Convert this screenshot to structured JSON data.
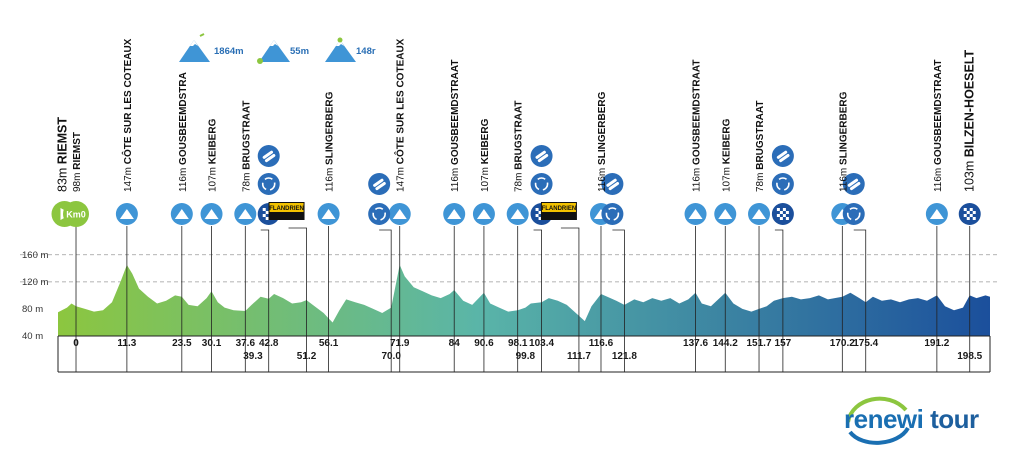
{
  "legend": [
    {
      "icon": "mountain-flag-icon",
      "label": "1864m"
    },
    {
      "icon": "mountain-start-icon",
      "label": "55m"
    },
    {
      "icon": "mountain-peak-icon",
      "label": "148r"
    }
  ],
  "logo": {
    "brand_a": "renewi",
    "brand_b": "tour"
  },
  "chart_data": {
    "type": "area",
    "title": "",
    "xlabel": "",
    "ylabel": "",
    "ylim": [
      40,
      170
    ],
    "yticks": [
      "160 m",
      "120 m",
      "80 m",
      "40 m"
    ],
    "ytick_values": [
      160,
      120,
      80,
      40
    ],
    "xlim": [
      -4,
      203
    ],
    "colors": {
      "start": "#8cc63f",
      "mid": "#5ab5a8",
      "end": "#1b4f9c",
      "icon": "#3f95d6"
    },
    "km_labels_top": [
      "0",
      "11.3",
      "23.5",
      "30.1",
      "37.6",
      "42.8",
      "56.1",
      "71.9",
      "84",
      "90.6",
      "98.1",
      "103.4",
      "116.6",
      "137.6",
      "144.2",
      "151.7",
      "157",
      "170.2",
      "175.4",
      "191.2"
    ],
    "km_labels_bottom": [
      "39.3",
      "51.2",
      "70.0",
      "99.8",
      "111.7",
      "121.8",
      "198.5"
    ],
    "climbs": [
      {
        "label": "83m",
        "name": "RIEMST",
        "km": -3,
        "icon": "start-icon",
        "bold": true
      },
      {
        "label": "98m",
        "name": "RIEMST",
        "km": 0,
        "icon": "km0-icon",
        "bold": false
      },
      {
        "label": "147m",
        "name": "CÔTE SUR LES COTEAUX",
        "km": 11.3,
        "icon": "mountain-icon",
        "bold": false
      },
      {
        "label": "116m",
        "name": "GOUSBEEMDSTRA",
        "km": 23.5,
        "icon": "mountain-icon",
        "bold": false
      },
      {
        "label": "107m",
        "name": "KEIBERG",
        "km": 30.1,
        "icon": "mountain-icon",
        "bold": false
      },
      {
        "label": "78m",
        "name": "BRUGSTRAAT",
        "km": 37.6,
        "icon": "mountain-icon",
        "bold": false
      },
      {
        "label": "116m",
        "name": "SLINGERBERG",
        "km": 56.1,
        "icon": "mountain-icon",
        "bold": false
      },
      {
        "label": "147m",
        "name": "CÔTE SUR LES COTEAUX",
        "km": 71.9,
        "icon": "mountain-icon",
        "bold": false
      },
      {
        "label": "116m",
        "name": "GOUSBEEMDSTRAAT",
        "km": 84,
        "icon": "mountain-icon",
        "bold": false
      },
      {
        "label": "107m",
        "name": "KEIBERG",
        "km": 90.6,
        "icon": "mountain-icon",
        "bold": false
      },
      {
        "label": "78m",
        "name": "BRUGSTRAAT",
        "km": 98.1,
        "icon": "mountain-icon",
        "bold": false
      },
      {
        "label": "116m",
        "name": "SLINGERBERG",
        "km": 116.6,
        "icon": "mountain-icon",
        "bold": false
      },
      {
        "label": "116m",
        "name": "GOUSBEEMDSTRAAT",
        "km": 137.6,
        "icon": "mountain-icon",
        "bold": false
      },
      {
        "label": "107m",
        "name": "KEIBERG",
        "km": 144.2,
        "icon": "mountain-icon",
        "bold": false
      },
      {
        "label": "78m",
        "name": "BRUGSTRAAT",
        "km": 151.7,
        "icon": "mountain-icon",
        "bold": false
      },
      {
        "label": "116m",
        "name": "SLINGERBERG",
        "km": 170.2,
        "icon": "mountain-icon",
        "bold": false
      },
      {
        "label": "116m",
        "name": "GOUSBEEMDSTRAAT",
        "km": 191.2,
        "icon": "mountain-icon",
        "bold": false
      },
      {
        "label": "103m",
        "name": "BILZEN-HOESELT",
        "km": 198.5,
        "icon": "finish-icon",
        "bold": true
      }
    ],
    "markers": [
      {
        "km": 42.8,
        "icon": "sprint-icon",
        "extra": "feed-icon"
      },
      {
        "km": 51.2,
        "icon": "sponsor-icon",
        "sponsor": "FLANDRIEN"
      },
      {
        "km": 70.0,
        "icon": "recycle-icon",
        "extra": "feed-icon"
      },
      {
        "km": 103.4,
        "icon": "sprint-icon",
        "extra": "feed-icon"
      },
      {
        "km": 111.7,
        "icon": "sponsor-icon",
        "sponsor": "FLANDRIEN"
      },
      {
        "km": 121.8,
        "icon": "recycle-icon",
        "extra": "feed-icon"
      },
      {
        "km": 157,
        "icon": "sprint-icon",
        "extra": "feed-icon"
      },
      {
        "km": 175.4,
        "icon": "recycle-icon",
        "extra": "feed-icon"
      }
    ],
    "profile": [
      [
        -4,
        75
      ],
      [
        -2,
        82
      ],
      [
        -1,
        88
      ],
      [
        0,
        84
      ],
      [
        2,
        80
      ],
      [
        4,
        76
      ],
      [
        6,
        78
      ],
      [
        8,
        90
      ],
      [
        10,
        122
      ],
      [
        11.3,
        145
      ],
      [
        12.5,
        132
      ],
      [
        14,
        110
      ],
      [
        16,
        98
      ],
      [
        18,
        88
      ],
      [
        20,
        92
      ],
      [
        22,
        100
      ],
      [
        23.5,
        98
      ],
      [
        25,
        86
      ],
      [
        27,
        84
      ],
      [
        29,
        96
      ],
      [
        30.1,
        106
      ],
      [
        31.5,
        90
      ],
      [
        33,
        82
      ],
      [
        35,
        78
      ],
      [
        37.6,
        77
      ],
      [
        39,
        86
      ],
      [
        41,
        98
      ],
      [
        42.8,
        95
      ],
      [
        44,
        102
      ],
      [
        46,
        96
      ],
      [
        48,
        88
      ],
      [
        50,
        90
      ],
      [
        51.2,
        93
      ],
      [
        53,
        84
      ],
      [
        55,
        74
      ],
      [
        56.1,
        66
      ],
      [
        57,
        60
      ],
      [
        58.5,
        78
      ],
      [
        60,
        94
      ],
      [
        62,
        90
      ],
      [
        64,
        86
      ],
      [
        66,
        80
      ],
      [
        68,
        74
      ],
      [
        70,
        82
      ],
      [
        71.9,
        145
      ],
      [
        73,
        128
      ],
      [
        75,
        112
      ],
      [
        77,
        106
      ],
      [
        79,
        100
      ],
      [
        81,
        96
      ],
      [
        83,
        102
      ],
      [
        84,
        108
      ],
      [
        86,
        92
      ],
      [
        88,
        86
      ],
      [
        90.6,
        104
      ],
      [
        92,
        88
      ],
      [
        94,
        82
      ],
      [
        96,
        76
      ],
      [
        98.1,
        78
      ],
      [
        99.8,
        82
      ],
      [
        101,
        88
      ],
      [
        103.4,
        90
      ],
      [
        105,
        96
      ],
      [
        107,
        92
      ],
      [
        109,
        86
      ],
      [
        111.7,
        70
      ],
      [
        113,
        62
      ],
      [
        114.5,
        84
      ],
      [
        116.6,
        102
      ],
      [
        118,
        98
      ],
      [
        120,
        92
      ],
      [
        121.8,
        86
      ],
      [
        124,
        94
      ],
      [
        126,
        90
      ],
      [
        128,
        96
      ],
      [
        130,
        92
      ],
      [
        132,
        96
      ],
      [
        134,
        88
      ],
      [
        136,
        94
      ],
      [
        137.6,
        104
      ],
      [
        139,
        88
      ],
      [
        141,
        84
      ],
      [
        144.2,
        104
      ],
      [
        146,
        88
      ],
      [
        148,
        80
      ],
      [
        150,
        76
      ],
      [
        151.7,
        80
      ],
      [
        153.4,
        84
      ],
      [
        155,
        92
      ],
      [
        157,
        96
      ],
      [
        159,
        98
      ],
      [
        161,
        94
      ],
      [
        163,
        96
      ],
      [
        165,
        100
      ],
      [
        167,
        94
      ],
      [
        170.2,
        98
      ],
      [
        172,
        104
      ],
      [
        174,
        96
      ],
      [
        175.4,
        90
      ],
      [
        177,
        98
      ],
      [
        179,
        92
      ],
      [
        181,
        94
      ],
      [
        183,
        90
      ],
      [
        185,
        94
      ],
      [
        187,
        96
      ],
      [
        189,
        92
      ],
      [
        191.2,
        100
      ],
      [
        193,
        84
      ],
      [
        195,
        78
      ],
      [
        197,
        82
      ],
      [
        198.5,
        100
      ],
      [
        200,
        96
      ],
      [
        202,
        100
      ],
      [
        203,
        98
      ]
    ]
  }
}
